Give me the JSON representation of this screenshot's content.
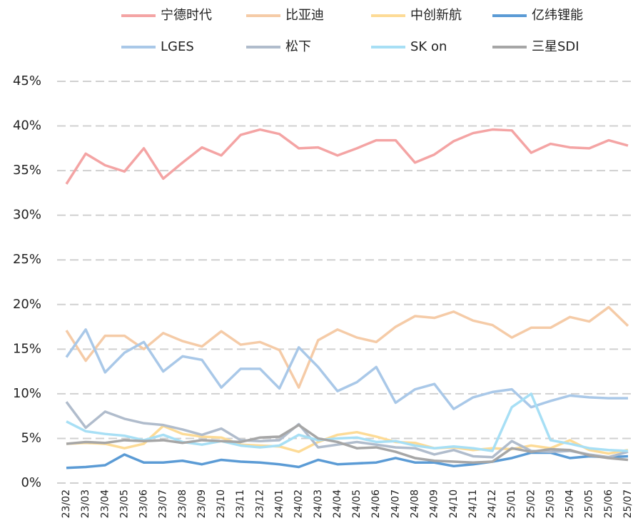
{
  "chart_data": {
    "type": "line",
    "categories": [
      "23/02",
      "23/03",
      "23/04",
      "23/05",
      "23/06",
      "23/07",
      "23/08",
      "23/09",
      "23/10",
      "23/11",
      "23/12",
      "24/01",
      "24/02",
      "24/03",
      "24/04",
      "24/05",
      "24/06",
      "24/07",
      "24/08",
      "24/09",
      "24/10",
      "24/11",
      "24/12",
      "25/01",
      "25/02",
      "25/03",
      "25/04",
      "25/05",
      "25/06",
      "25/07"
    ],
    "series": [
      {
        "name": "宁德时代",
        "color": "#f4a4a4",
        "values": [
          33.5,
          36.9,
          35.6,
          34.9,
          37.5,
          34.1,
          35.9,
          37.6,
          36.7,
          39.0,
          39.6,
          39.1,
          37.5,
          37.6,
          36.7,
          37.5,
          38.4,
          38.4,
          35.9,
          36.8,
          38.3,
          39.2,
          39.6,
          39.5,
          37.0,
          38.0,
          37.6,
          37.5,
          38.4,
          37.8
        ]
      },
      {
        "name": "比亚迪",
        "color": "#f5cba7",
        "values": [
          17.1,
          13.7,
          16.5,
          16.5,
          15.0,
          16.8,
          15.9,
          15.3,
          17.0,
          15.5,
          15.8,
          14.9,
          10.7,
          16.0,
          17.2,
          16.3,
          15.8,
          17.5,
          18.7,
          18.5,
          19.2,
          18.2,
          17.7,
          16.3,
          17.4,
          17.4,
          18.6,
          18.1,
          19.7,
          17.6
        ]
      },
      {
        "name": "中创新航",
        "color": "#fddb96",
        "values": [
          4.4,
          4.5,
          4.4,
          3.9,
          4.4,
          6.4,
          5.5,
          5.2,
          5.1,
          4.3,
          4.2,
          4.1,
          3.5,
          4.6,
          5.4,
          5.7,
          5.2,
          4.6,
          4.5,
          3.9,
          4.0,
          3.7,
          3.9,
          3.8,
          4.2,
          3.9,
          4.8,
          3.7,
          3.3,
          3.7
        ]
      },
      {
        "name": "亿纬锂能",
        "color": "#5b9bd5",
        "values": [
          1.7,
          1.8,
          2.0,
          3.2,
          2.3,
          2.3,
          2.5,
          2.1,
          2.6,
          2.4,
          2.3,
          2.1,
          1.8,
          2.6,
          2.1,
          2.2,
          2.3,
          2.8,
          2.3,
          2.3,
          1.9,
          2.1,
          2.4,
          2.8,
          3.4,
          3.4,
          2.8,
          3.0,
          2.9,
          3.0
        ]
      },
      {
        "name": "LGES",
        "color": "#a9c8e8",
        "values": [
          14.1,
          17.2,
          12.4,
          14.6,
          15.8,
          12.5,
          14.2,
          13.8,
          10.7,
          12.8,
          12.8,
          10.6,
          15.2,
          13.0,
          10.3,
          11.3,
          13.0,
          9.0,
          10.5,
          11.1,
          8.3,
          9.6,
          10.2,
          10.5,
          8.5,
          9.2,
          9.8,
          9.6,
          9.5,
          9.5
        ]
      },
      {
        "name": "松下",
        "color": "#b0bccc",
        "values": [
          9.1,
          6.2,
          8.0,
          7.2,
          6.7,
          6.5,
          6.0,
          5.4,
          6.1,
          4.8,
          4.7,
          4.8,
          6.6,
          4.0,
          4.3,
          4.6,
          4.3,
          4.0,
          3.9,
          3.2,
          3.7,
          3.0,
          2.9,
          4.7,
          3.6,
          3.5,
          3.6,
          3.2,
          2.9,
          3.5
        ]
      },
      {
        "name": "SK on",
        "color": "#a7dff5",
        "values": [
          6.9,
          5.8,
          5.5,
          5.3,
          4.8,
          5.4,
          4.6,
          4.3,
          4.7,
          4.2,
          4.0,
          4.2,
          5.4,
          4.8,
          5.0,
          5.1,
          4.6,
          4.7,
          4.2,
          3.9,
          4.1,
          3.9,
          3.6,
          8.5,
          10.0,
          4.8,
          4.4,
          3.9,
          3.7,
          3.6
        ]
      },
      {
        "name": "三星SDI",
        "color": "#a6a6a6",
        "values": [
          4.4,
          4.6,
          4.5,
          4.8,
          4.7,
          4.8,
          4.5,
          4.8,
          4.7,
          4.6,
          5.1,
          5.2,
          6.5,
          5.0,
          4.6,
          3.9,
          4.0,
          3.5,
          2.8,
          2.5,
          2.4,
          2.3,
          2.4,
          3.9,
          3.5,
          3.8,
          3.7,
          3.1,
          2.8,
          2.6
        ]
      }
    ],
    "ylim": [
      0,
      45
    ],
    "yticks": [
      {
        "value": 0,
        "label": "0%"
      },
      {
        "value": 5,
        "label": "5%"
      },
      {
        "value": 10,
        "label": "10%"
      },
      {
        "value": 15,
        "label": "15%"
      },
      {
        "value": 20,
        "label": "20%"
      },
      {
        "value": 25,
        "label": "25%"
      },
      {
        "value": 30,
        "label": "30%"
      },
      {
        "value": 35,
        "label": "35%"
      },
      {
        "value": 40,
        "label": "40%"
      },
      {
        "value": 45,
        "label": "45%"
      }
    ],
    "grid": true,
    "legend": "top"
  }
}
